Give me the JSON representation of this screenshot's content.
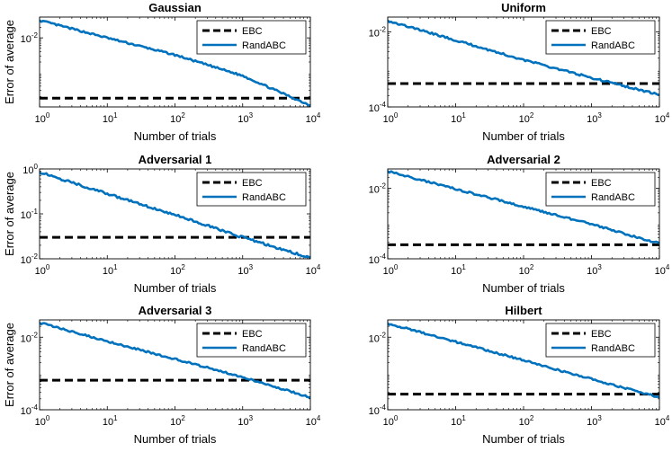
{
  "chart_data": [
    {
      "type": "line",
      "title": "Gaussian",
      "xlabel": "Number of trials",
      "ylabel": "Error of average",
      "x_scale": "log",
      "y_scale": "log",
      "xlim": [
        1,
        10000
      ],
      "ylim": [
        0.0001,
        0.04
      ],
      "x_ticks": [
        {
          "base": "10",
          "exp": "0"
        },
        {
          "base": "10",
          "exp": "1"
        },
        {
          "base": "10",
          "exp": "2"
        },
        {
          "base": "10",
          "exp": "3"
        },
        {
          "base": "10",
          "exp": "4"
        }
      ],
      "y_ticks": [
        {
          "base": "10",
          "exp": "-2"
        }
      ],
      "legend_position": "top-right",
      "series": [
        {
          "name": "EBC",
          "style": "dashed",
          "color": "#000000",
          "x": [
            1,
            10000
          ],
          "y": [
            0.00018,
            0.00018
          ]
        },
        {
          "name": "RandABC",
          "style": "solid",
          "color": "#0072bd",
          "x": [
            1,
            10,
            100,
            1000,
            10000
          ],
          "y": [
            0.032,
            0.01,
            0.0032,
            0.0008,
            0.00011
          ]
        }
      ]
    },
    {
      "type": "line",
      "title": "Uniform",
      "xlabel": "Number of trials",
      "ylabel": "",
      "x_scale": "log",
      "y_scale": "log",
      "xlim": [
        1,
        10000
      ],
      "ylim": [
        0.0001,
        0.025
      ],
      "x_ticks": [
        {
          "base": "10",
          "exp": "0"
        },
        {
          "base": "10",
          "exp": "1"
        },
        {
          "base": "10",
          "exp": "2"
        },
        {
          "base": "10",
          "exp": "3"
        },
        {
          "base": "10",
          "exp": "4"
        }
      ],
      "y_ticks": [
        {
          "base": "10",
          "exp": "-2"
        },
        {
          "base": "10",
          "exp": "-4"
        }
      ],
      "legend_position": "top-right",
      "series": [
        {
          "name": "EBC",
          "style": "dashed",
          "color": "#000000",
          "x": [
            1,
            10000
          ],
          "y": [
            0.00042,
            0.00042
          ]
        },
        {
          "name": "RandABC",
          "style": "solid",
          "color": "#0072bd",
          "x": [
            1,
            10,
            100,
            1000,
            10000
          ],
          "y": [
            0.02,
            0.006,
            0.0018,
            0.0006,
            0.00021
          ]
        }
      ]
    },
    {
      "type": "line",
      "title": "Adversarial 1",
      "xlabel": "Number of trials",
      "ylabel": "Error of average",
      "x_scale": "log",
      "y_scale": "log",
      "xlim": [
        1,
        10000
      ],
      "ylim": [
        0.01,
        1
      ],
      "x_ticks": [
        {
          "base": "10",
          "exp": "0"
        },
        {
          "base": "10",
          "exp": "1"
        },
        {
          "base": "10",
          "exp": "2"
        },
        {
          "base": "10",
          "exp": "3"
        },
        {
          "base": "10",
          "exp": "4"
        }
      ],
      "y_ticks": [
        {
          "base": "10",
          "exp": "0"
        },
        {
          "base": "10",
          "exp": "-1"
        },
        {
          "base": "10",
          "exp": "-2"
        }
      ],
      "legend_position": "top-right",
      "series": [
        {
          "name": "EBC",
          "style": "dashed",
          "color": "#000000",
          "x": [
            1,
            10000
          ],
          "y": [
            0.03,
            0.03
          ]
        },
        {
          "name": "RandABC",
          "style": "solid",
          "color": "#0072bd",
          "x": [
            1,
            10,
            100,
            1000,
            10000
          ],
          "y": [
            0.85,
            0.28,
            0.095,
            0.03,
            0.0105
          ]
        }
      ]
    },
    {
      "type": "line",
      "title": "Adversarial 2",
      "xlabel": "Number of trials",
      "ylabel": "",
      "x_scale": "log",
      "y_scale": "log",
      "xlim": [
        1,
        10000
      ],
      "ylim": [
        0.0001,
        0.035
      ],
      "x_ticks": [
        {
          "base": "10",
          "exp": "0"
        },
        {
          "base": "10",
          "exp": "1"
        },
        {
          "base": "10",
          "exp": "2"
        },
        {
          "base": "10",
          "exp": "3"
        },
        {
          "base": "10",
          "exp": "4"
        }
      ],
      "y_ticks": [
        {
          "base": "10",
          "exp": "-2"
        },
        {
          "base": "10",
          "exp": "-4"
        }
      ],
      "legend_position": "top-right",
      "series": [
        {
          "name": "EBC",
          "style": "dashed",
          "color": "#000000",
          "x": [
            1,
            10000
          ],
          "y": [
            0.00025,
            0.00025
          ]
        },
        {
          "name": "RandABC",
          "style": "solid",
          "color": "#0072bd",
          "x": [
            1,
            10,
            100,
            1000,
            10000
          ],
          "y": [
            0.03,
            0.0095,
            0.003,
            0.00095,
            0.00027
          ]
        }
      ]
    },
    {
      "type": "line",
      "title": "Adversarial 3",
      "xlabel": "Number of trials",
      "ylabel": "Error of average",
      "x_scale": "log",
      "y_scale": "log",
      "xlim": [
        1,
        10000
      ],
      "ylim": [
        0.0001,
        0.03
      ],
      "x_ticks": [
        {
          "base": "10",
          "exp": "0"
        },
        {
          "base": "10",
          "exp": "1"
        },
        {
          "base": "10",
          "exp": "2"
        },
        {
          "base": "10",
          "exp": "3"
        },
        {
          "base": "10",
          "exp": "4"
        }
      ],
      "y_ticks": [
        {
          "base": "10",
          "exp": "-2"
        },
        {
          "base": "10",
          "exp": "-4"
        }
      ],
      "legend_position": "top-right",
      "series": [
        {
          "name": "EBC",
          "style": "dashed",
          "color": "#000000",
          "x": [
            1,
            10000
          ],
          "y": [
            0.00065,
            0.00065
          ]
        },
        {
          "name": "RandABC",
          "style": "solid",
          "color": "#0072bd",
          "x": [
            1,
            10,
            100,
            1000,
            10000
          ],
          "y": [
            0.025,
            0.0078,
            0.0025,
            0.0008,
            0.00022
          ]
        }
      ]
    },
    {
      "type": "line",
      "title": "Hilbert",
      "xlabel": "Number of trials",
      "ylabel": "",
      "x_scale": "log",
      "y_scale": "log",
      "xlim": [
        1,
        10000
      ],
      "ylim": [
        0.0001,
        0.03
      ],
      "x_ticks": [
        {
          "base": "10",
          "exp": "0"
        },
        {
          "base": "10",
          "exp": "1"
        },
        {
          "base": "10",
          "exp": "2"
        },
        {
          "base": "10",
          "exp": "3"
        },
        {
          "base": "10",
          "exp": "4"
        }
      ],
      "y_ticks": [
        {
          "base": "10",
          "exp": "-2"
        },
        {
          "base": "10",
          "exp": "-4"
        }
      ],
      "legend_position": "top-right",
      "series": [
        {
          "name": "EBC",
          "style": "dashed",
          "color": "#000000",
          "x": [
            1,
            10000
          ],
          "y": [
            0.00027,
            0.00027
          ]
        },
        {
          "name": "RandABC",
          "style": "solid",
          "color": "#0072bd",
          "x": [
            1,
            10,
            100,
            1000,
            10000
          ],
          "y": [
            0.024,
            0.0075,
            0.0023,
            0.0007,
            0.00022
          ]
        }
      ]
    }
  ]
}
